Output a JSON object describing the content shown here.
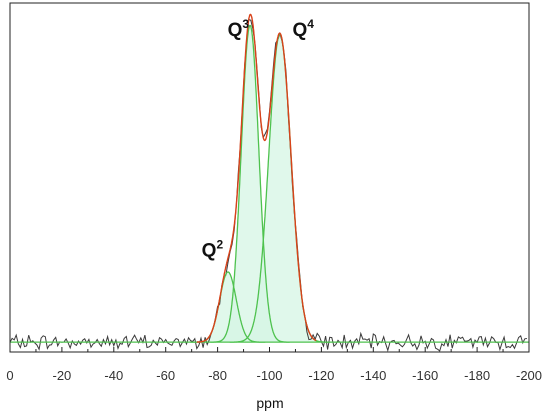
{
  "chart_data": {
    "type": "line",
    "title": "",
    "xlabel": "ppm",
    "ylabel": "",
    "xlim": [
      0,
      -200
    ],
    "ylim": [
      -0.03,
      1.03
    ],
    "x_reversed": true,
    "grid": false,
    "x_ticks": [
      0,
      -20,
      -40,
      -60,
      -80,
      -100,
      -120,
      -140,
      -160,
      -180,
      -200
    ],
    "x_tick_labels": [
      "0",
      "-20",
      "-40",
      "-60",
      "-80",
      "-100",
      "-120",
      "-140",
      "-160",
      "-180",
      "-200"
    ],
    "annotations": [
      {
        "base": "Q",
        "sup": "3",
        "x": -88,
        "y": 0.93
      },
      {
        "base": "Q",
        "sup": "4",
        "x": -113,
        "y": 0.93
      },
      {
        "base": "Q",
        "sup": "2",
        "x": -78,
        "y": 0.26
      }
    ],
    "components": [
      {
        "center": -84,
        "height": 0.213,
        "width": 3.2
      },
      {
        "center": -92.5,
        "height": 0.962,
        "width": 3.4
      },
      {
        "center": -104,
        "height": 0.935,
        "width": 4.3
      }
    ],
    "baseline": 0.0,
    "colors": {
      "experimental": "#3a3a3a",
      "fit": "#d9421a",
      "components": "#4ec24e",
      "fill": "#d6f5e4",
      "frame": "#222222"
    }
  }
}
